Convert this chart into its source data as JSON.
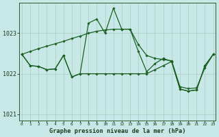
{
  "background_color": "#c8e8e8",
  "grid_color": "#aaccbb",
  "line_color": "#1a6020",
  "xlabel": "Graphe pression niveau de la mer (hPa)",
  "ylim": [
    1020.85,
    1023.75
  ],
  "yticks": [
    1021,
    1022,
    1023
  ],
  "xlim": [
    -0.3,
    23.3
  ],
  "xticks": [
    0,
    1,
    2,
    3,
    4,
    5,
    6,
    7,
    8,
    9,
    10,
    11,
    12,
    13,
    14,
    15,
    16,
    17,
    18,
    19,
    20,
    21,
    22,
    23
  ],
  "series": [
    {
      "x": [
        0,
        1,
        2,
        3,
        4,
        5,
        6,
        7,
        8,
        9,
        10,
        11,
        12,
        13,
        14,
        15,
        16,
        17,
        18,
        19,
        20,
        21,
        22,
        23
      ],
      "y": [
        1022.48,
        1022.55,
        1022.62,
        1022.68,
        1022.74,
        1022.8,
        1022.87,
        1022.93,
        1023.0,
        1023.05,
        1023.08,
        1023.1,
        1023.1,
        1023.1,
        1022.72,
        1022.45,
        1022.38,
        1022.35,
        1022.32,
        1021.68,
        1021.63,
        1021.65,
        1022.15,
        1022.48
      ]
    },
    {
      "x": [
        0,
        1,
        2,
        3,
        4,
        5,
        6,
        7,
        8,
        9,
        10,
        11,
        12,
        13,
        14,
        15,
        16,
        17,
        18,
        19,
        20,
        21,
        22,
        23
      ],
      "y": [
        1022.48,
        1022.2,
        1022.18,
        1022.1,
        1022.12,
        1022.45,
        1021.92,
        1022.0,
        1023.25,
        1023.35,
        1023.0,
        1023.62,
        1023.1,
        1023.1,
        1022.55,
        1022.05,
        1022.25,
        1022.38,
        1022.3,
        1021.62,
        1021.57,
        1021.6,
        1022.2,
        1022.48
      ]
    },
    {
      "x": [
        0,
        1,
        2,
        3,
        4,
        5,
        6,
        7,
        8,
        9,
        10,
        11,
        12,
        13,
        14,
        15,
        16,
        17,
        18,
        19,
        20,
        21,
        22,
        23
      ],
      "y": [
        1022.48,
        1022.2,
        1022.18,
        1022.1,
        1022.12,
        1022.45,
        1021.92,
        1022.0,
        1022.0,
        1022.0,
        1022.0,
        1022.0,
        1022.0,
        1022.0,
        1022.0,
        1022.0,
        1022.1,
        1022.2,
        1022.3,
        1021.62,
        1021.57,
        1021.6,
        1022.2,
        1022.48
      ]
    }
  ]
}
